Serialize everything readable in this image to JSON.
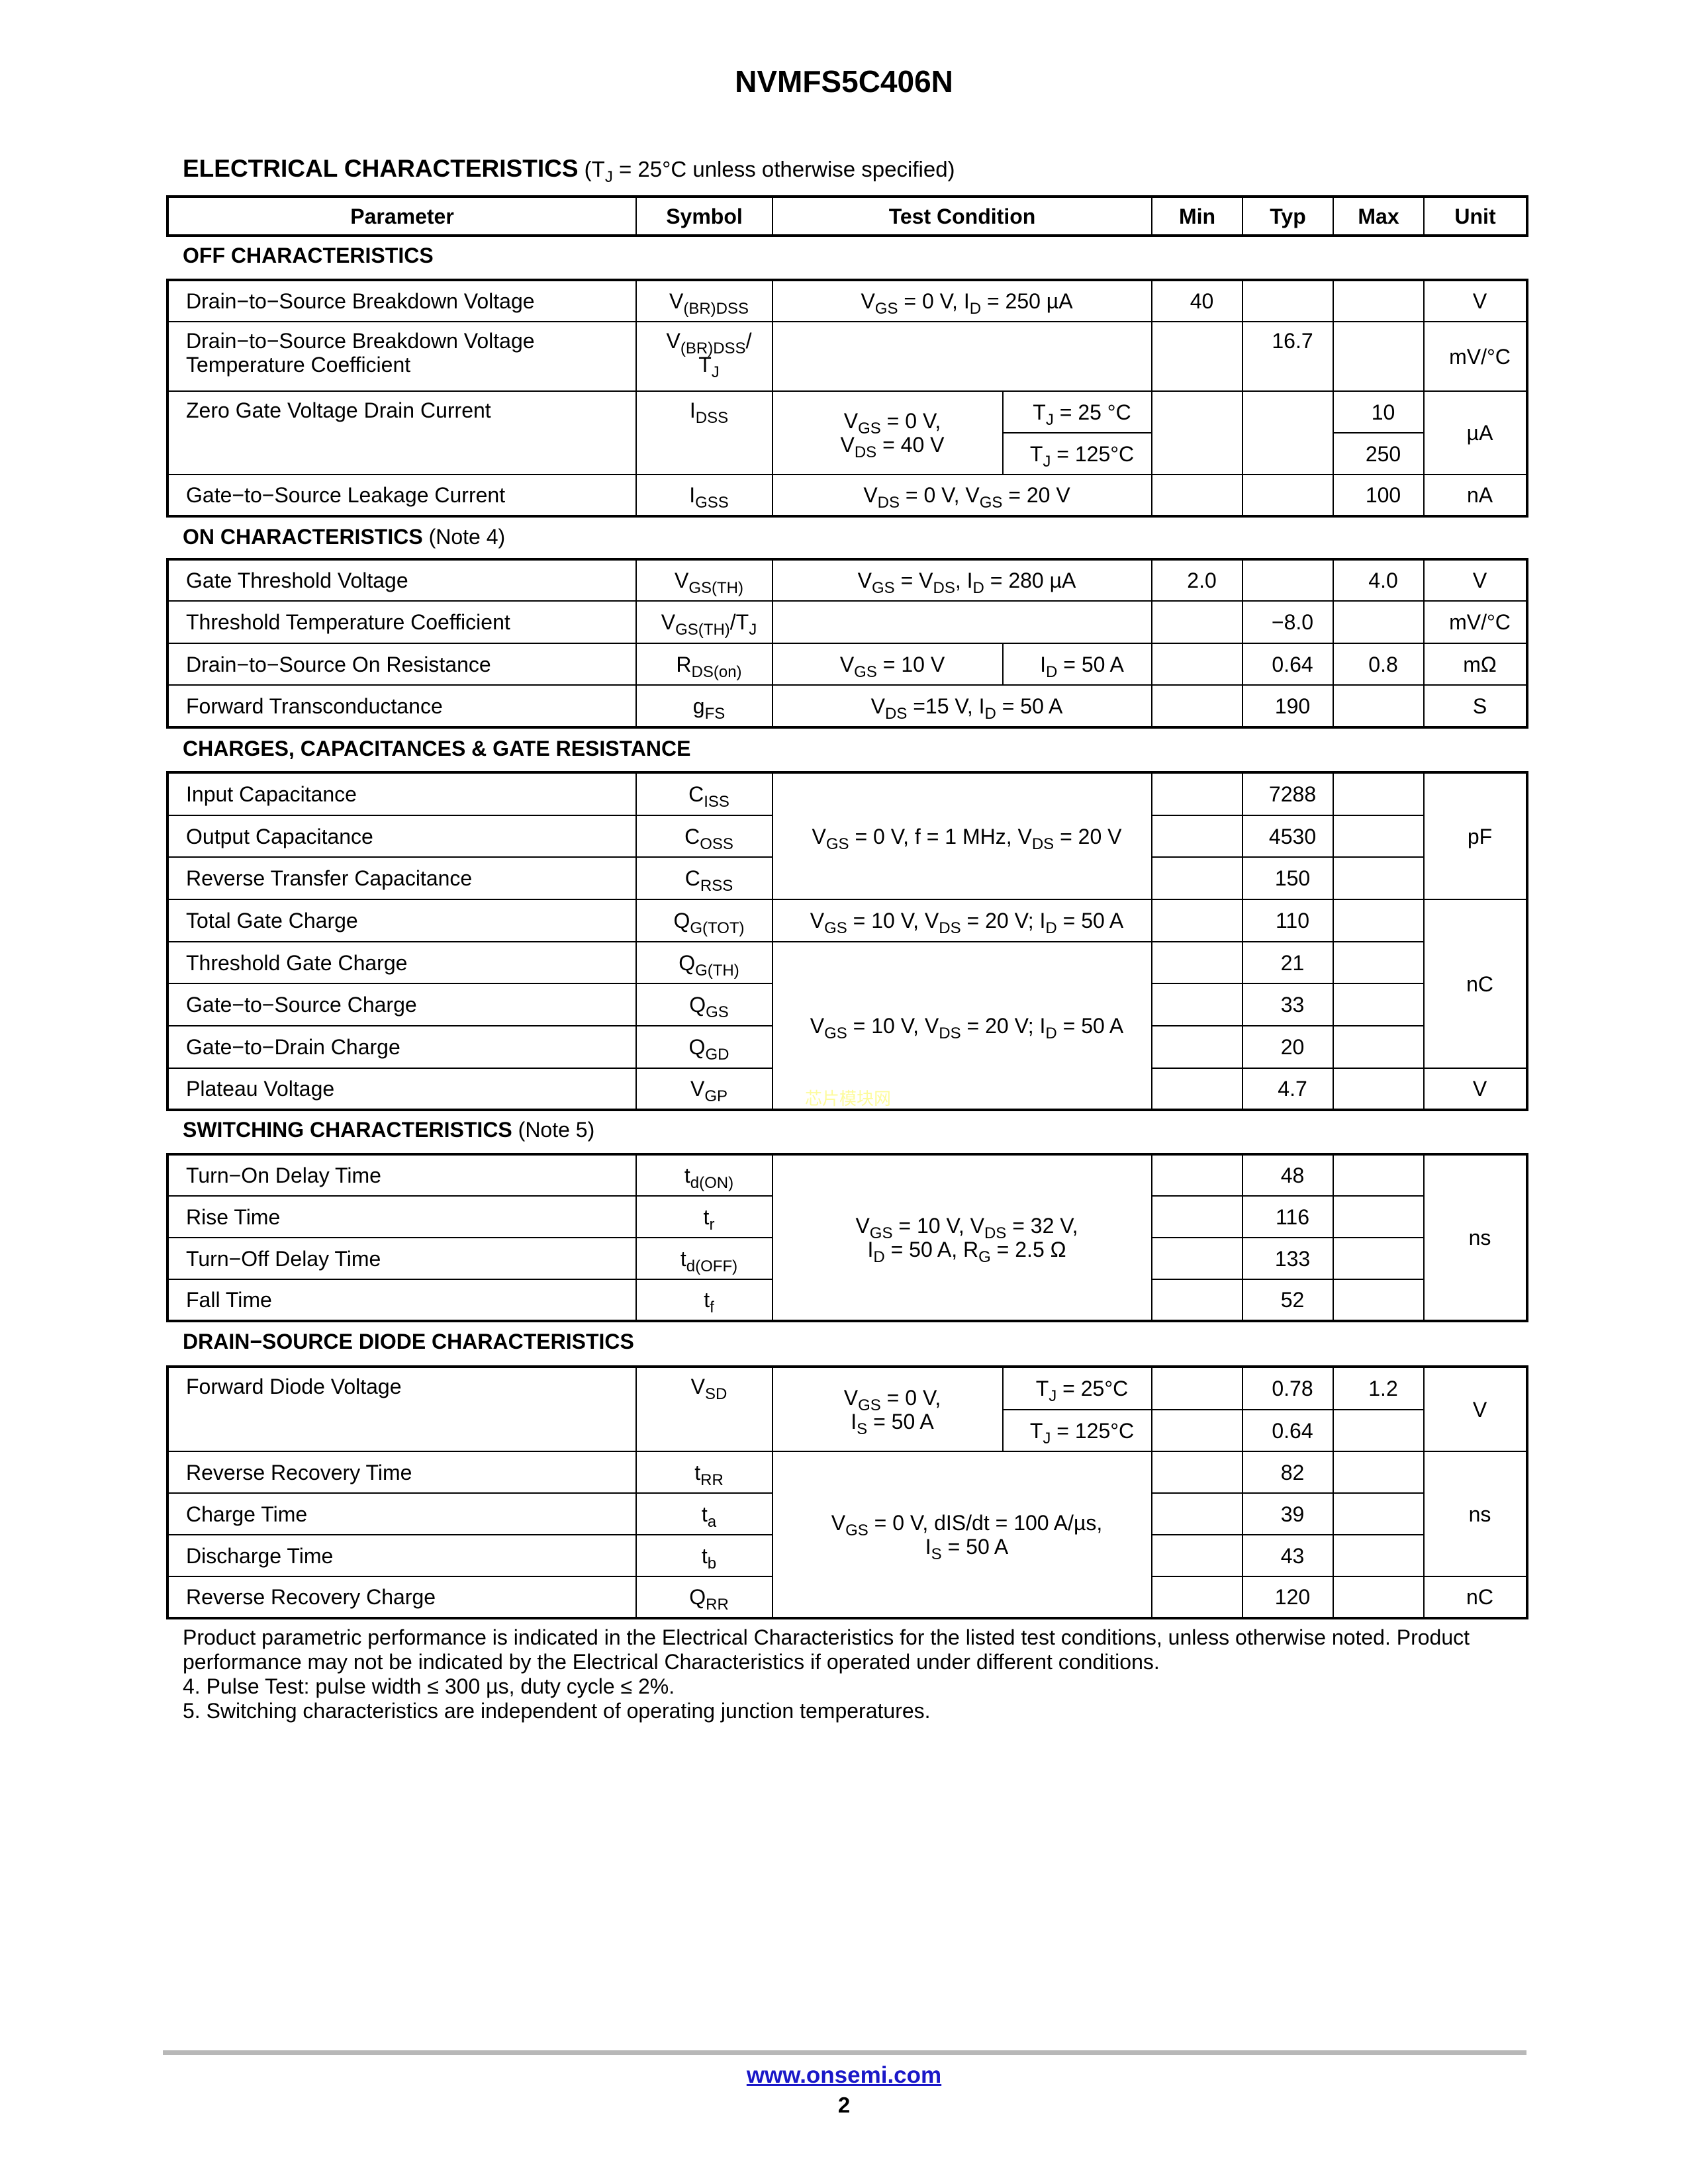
{
  "title": "NVMFS5C406N",
  "ec_heading": "ELECTRICAL CHARACTERISTICS",
  "ec_condition": "(T_{J} = 25°C unless otherwise specified)",
  "headers": [
    "Parameter",
    "Symbol",
    "Test Condition",
    "Min",
    "Typ",
    "Max",
    "Unit"
  ],
  "sections": {
    "off": {
      "title": "OFF CHARACTERISTICS",
      "note": ""
    },
    "on": {
      "title": "ON CHARACTERISTICS",
      "note": "(Note 4)"
    },
    "charges": {
      "title": "CHARGES, CAPACITANCES & GATE RESISTANCE",
      "note": ""
    },
    "switching": {
      "title": "SWITCHING CHARACTERISTICS",
      "note": "(Note 5)"
    },
    "diode": {
      "title": "DRAIN−SOURCE DIODE CHARACTERISTICS",
      "note": ""
    }
  },
  "off": [
    {
      "param": "Drain−to−Source Breakdown Voltage",
      "sym": "V_{(BR)DSS}",
      "cond": "V_{GS} = 0 V, I_{D} = 250 µA",
      "min": "40",
      "unit": "V"
    },
    {
      "param": "Drain−to−Source Breakdown Voltage\nTemperature Coefficient",
      "sym": "V_{(BR)DSS}/\nT_{J}",
      "typ": "16.7",
      "unit": "mV/°C"
    },
    {
      "param": "Zero Gate Voltage Drain Current",
      "sym": "I_{DSS}",
      "cond": "V_{GS} = 0 V,\nV_{DS} = 40 V",
      "cond_b": "T_{J} = 25 °C",
      "max": "10",
      "unit": "µA"
    },
    {
      "cond_b": "T_{J} = 125°C",
      "max": "250"
    },
    {
      "param": "Gate−to−Source Leakage Current",
      "sym": "I_{GSS}",
      "cond": "V_{DS} = 0 V, V_{GS} = 20 V",
      "max": "100",
      "unit": "nA"
    }
  ],
  "on": [
    {
      "param": "Gate Threshold Voltage",
      "sym": "V_{GS(TH)}",
      "cond": "V_{GS} = V_{DS}, I_{D} = 280 µA",
      "min": "2.0",
      "max": "4.0",
      "unit": "V"
    },
    {
      "param": "Threshold Temperature Coefficient",
      "sym": "V_{GS(TH)}/T_{J}",
      "typ": "−8.0",
      "unit": "mV/°C"
    },
    {
      "param": "Drain−to−Source On Resistance",
      "sym": "R_{DS(on)}",
      "cond": "V_{GS} = 10 V",
      "cond_b": "I_{D} = 50 A",
      "typ": "0.64",
      "max": "0.8",
      "unit": "mΩ"
    },
    {
      "param": "Forward Transconductance",
      "sym": "g_{FS}",
      "cond": "V_{DS} =15 V, I_{D} = 50 A",
      "typ": "190",
      "unit": "S"
    }
  ],
  "charges": [
    {
      "param": "Input Capacitance",
      "sym": "C_{ISS}",
      "cond": "V_{GS} = 0 V, f = 1 MHz, V_{DS} = 20 V",
      "typ": "7288",
      "unit": "pF"
    },
    {
      "param": "Output Capacitance",
      "sym": "C_{OSS}",
      "typ": "4530"
    },
    {
      "param": "Reverse Transfer Capacitance",
      "sym": "C_{RSS}",
      "typ": "150"
    },
    {
      "param": "Total Gate Charge",
      "sym": "Q_{G(TOT)}",
      "cond": "V_{GS} = 10 V, V_{DS} = 20 V; I_{D} = 50 A",
      "typ": "110",
      "unit": "nC"
    },
    {
      "param": "Threshold Gate Charge",
      "sym": "Q_{G(TH)}",
      "cond": "V_{GS} = 10 V, V_{DS} = 20 V; I_{D} = 50 A",
      "typ": "21"
    },
    {
      "param": "Gate−to−Source Charge",
      "sym": "Q_{GS}",
      "typ": "33"
    },
    {
      "param": "Gate−to−Drain Charge",
      "sym": "Q_{GD}",
      "typ": "20"
    },
    {
      "param": "Plateau Voltage",
      "sym": "V_{GP}",
      "typ": "4.7",
      "unit": "V"
    }
  ],
  "switching": [
    {
      "param": "Turn−On Delay Time",
      "sym": "t_{d(ON)}",
      "cond": "V_{GS} = 10 V, V_{DS} = 32 V,\nI_{D} = 50 A, R_{G} = 2.5 Ω",
      "typ": "48",
      "unit": "ns"
    },
    {
      "param": "Rise Time",
      "sym": "t_{r}",
      "typ": "116"
    },
    {
      "param": "Turn−Off Delay Time",
      "sym": "t_{d(OFF)}",
      "typ": "133"
    },
    {
      "param": "Fall Time",
      "sym": "t_{f}",
      "typ": "52"
    }
  ],
  "diode": [
    {
      "param": "Forward Diode Voltage",
      "sym": "V_{SD}",
      "cond": "V_{GS} = 0 V,\nI_{S} = 50 A",
      "cond_b": "T_{J} = 25°C",
      "typ": "0.78",
      "max": "1.2",
      "unit": "V"
    },
    {
      "cond_b": "T_{J} = 125°C",
      "typ": "0.64"
    },
    {
      "param": "Reverse Recovery Time",
      "sym": "t_{RR}",
      "cond": "V_{GS} = 0 V, dIS/dt = 100 A/µs,\nI_{S} = 50 A",
      "typ": "82",
      "unit": "ns"
    },
    {
      "param": "Charge Time",
      "sym": "t_{a}",
      "typ": "39"
    },
    {
      "param": "Discharge Time",
      "sym": "t_{b}",
      "typ": "43"
    },
    {
      "param": "Reverse Recovery Charge",
      "sym": "Q_{RR}",
      "typ": "120",
      "unit": "nC"
    }
  ],
  "notes": [
    "Product parametric performance is indicated in the Electrical Characteristics for the listed test conditions, unless otherwise noted. Product performance may not be indicated by the Electrical Characteristics if operated under different conditions.",
    "4.  Pulse Test: pulse width ≤ 300 µs, duty cycle ≤ 2%.",
    "5.  Switching characteristics are independent of operating junction temperatures."
  ],
  "watermark": "芯片模块网",
  "footer": {
    "url": "www.onsemi.com",
    "page": "2"
  },
  "colors": {
    "link": "#1a18c8",
    "rule": "#b8b8b8",
    "watermark": "#fdfb9c"
  }
}
